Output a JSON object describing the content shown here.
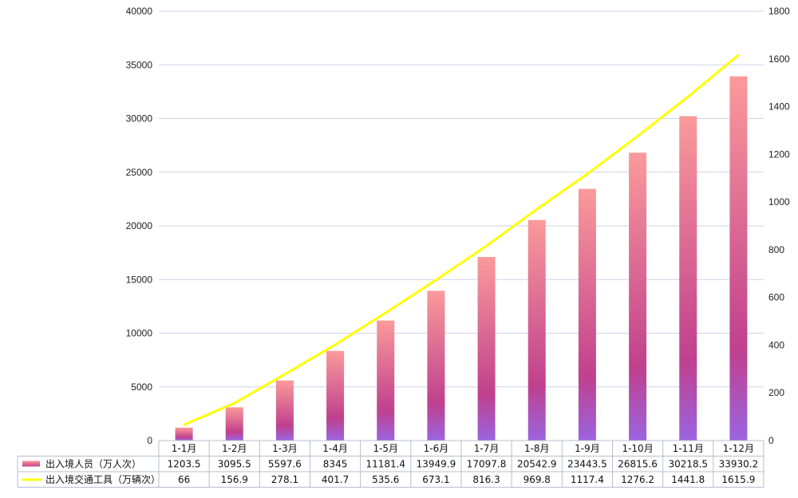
{
  "chart_data": {
    "type": "bar",
    "categories": [
      "1-1月",
      "1-2月",
      "1-3月",
      "1-4月",
      "1-5月",
      "1-6月",
      "1-7月",
      "1-8月",
      "1-9月",
      "1-10月",
      "1-11月",
      "1-12月"
    ],
    "series": [
      {
        "name": "出入境人员（万人次）",
        "type": "bar",
        "axis": "left",
        "values": [
          1203.5,
          3095.5,
          5597.6,
          8345,
          11181.4,
          13949.9,
          17097.8,
          20542.9,
          23443.5,
          26815.6,
          30218.5,
          33930.2
        ],
        "labels": [
          "1203.5",
          "3095.5",
          "5597.6",
          "8345",
          "11181.4",
          "13949.9",
          "17097.8",
          "20542.9",
          "23443.5",
          "26815.6",
          "30218.5",
          "33930.2"
        ]
      },
      {
        "name": "出入境交通工具（万辆次）",
        "type": "line",
        "axis": "right",
        "values": [
          66,
          156.9,
          278.1,
          401.7,
          535.6,
          673.1,
          816.3,
          969.8,
          1117.4,
          1276.2,
          1441.8,
          1615.9
        ],
        "labels": [
          "66",
          "156.9",
          "278.1",
          "401.7",
          "535.6",
          "673.1",
          "816.3",
          "969.8",
          "1117.4",
          "1276.2",
          "1441.8",
          "1615.9"
        ]
      }
    ],
    "y_left": {
      "range": [
        0,
        40000
      ],
      "ticks": [
        "0",
        "5000",
        "10000",
        "15000",
        "20000",
        "25000",
        "30000",
        "35000",
        "40000"
      ]
    },
    "y_right": {
      "range": [
        0,
        1800
      ],
      "ticks": [
        "0",
        "200",
        "400",
        "600",
        "800",
        "1000",
        "1200",
        "1400",
        "1600",
        "1800"
      ]
    },
    "grid": true,
    "legend": "data-table-below",
    "colors": {
      "bar_top": "#fb9a9a",
      "bar_mid": "#c0408e",
      "bar_bottom": "#9b64e0",
      "line": "#ffff00",
      "grid": "#cfd2ea",
      "table_border": "#b8bccf"
    }
  }
}
